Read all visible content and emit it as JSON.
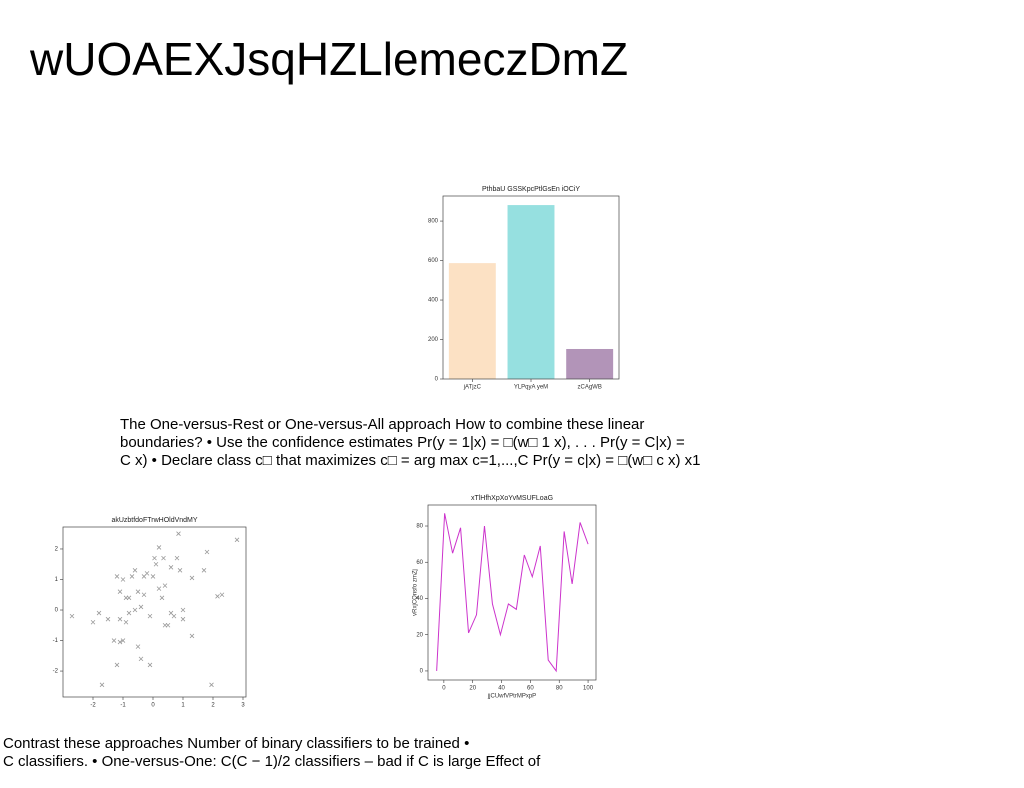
{
  "slide": {
    "title": "wUOAEXJsqHZLlemeczDmZ",
    "paragraph_1": [
      "The One-versus-Rest or One-versus-All approach How to combine these linear",
      "boundaries? • Use the confidence estimates Pr(y = 1|x) = □(w□ 1 x), . . . Pr(y = C|x) =",
      "C x) • Declare class c□ that maximizes c□ = arg max c=1,...,C Pr(y = c|x) = □(w□ c x) x1"
    ],
    "paragraph_2": [
      "Contrast these approaches Number of binary classifiers to be trained •",
      "C classifiers. • One-versus-One: C(C − 1)/2 classifiers – bad if C is large Effect of"
    ]
  },
  "chart_data": [
    {
      "type": "bar",
      "title": "PthbaU GSSKpcPtlGsEn iOCiY",
      "categories": [
        "jATjzC",
        "YLPqyA yeM",
        "zCAgWB"
      ],
      "values": [
        587,
        881,
        152
      ],
      "colors": [
        "#fce1c4",
        "#96e0e0",
        "#b294b8"
      ],
      "ylim": [
        0,
        927
      ],
      "yticks": [
        0,
        200,
        400,
        600,
        800
      ]
    },
    {
      "type": "scatter",
      "title": "akUzbtfdoFTrwHOldVndMY",
      "color": "#999999",
      "x": [
        -2.7,
        -2.0,
        -1.8,
        -1.5,
        -1.7,
        -1.2,
        -1.2,
        -1.1,
        -1.0,
        -1.1,
        -1.0,
        -0.9,
        -0.8,
        -0.8,
        -0.7,
        -0.6,
        -0.6,
        -0.5,
        -0.5,
        -0.4,
        -0.4,
        -0.3,
        -0.3,
        -0.2,
        -0.1,
        -0.1,
        0.0,
        0.05,
        0.1,
        0.2,
        0.2,
        0.3,
        0.35,
        0.4,
        0.5,
        0.6,
        0.7,
        0.8,
        0.85,
        0.9,
        1.0,
        1.0,
        1.3,
        1.3,
        1.7,
        1.8,
        1.95,
        2.15,
        2.3,
        2.8,
        -1.3,
        -0.9,
        0.6,
        -1.1,
        0.4
      ],
      "y": [
        -0.2,
        -0.4,
        -0.1,
        -0.3,
        -2.45,
        -1.8,
        1.1,
        0.6,
        1.0,
        -0.3,
        -1.0,
        0.4,
        0.4,
        -0.1,
        1.1,
        0.0,
        1.3,
        0.6,
        -1.2,
        0.1,
        -1.6,
        1.1,
        0.5,
        1.2,
        -1.8,
        -0.2,
        1.1,
        1.7,
        1.5,
        2.05,
        0.7,
        0.4,
        1.7,
        -0.5,
        -0.5,
        1.4,
        -0.2,
        1.7,
        2.5,
        1.3,
        0.0,
        -0.3,
        1.05,
        -0.85,
        1.3,
        1.9,
        -2.45,
        0.45,
        0.5,
        2.3,
        -1.0,
        -0.4,
        -0.1,
        -1.05,
        0.8
      ],
      "xlim": [
        -3,
        3.1
      ],
      "ylim": [
        -2.85,
        2.72
      ],
      "xticks": [
        -2,
        -1,
        0,
        1,
        2,
        3
      ],
      "yticks": [
        -2,
        -1,
        0,
        1,
        2
      ]
    },
    {
      "type": "line",
      "title": "xTlHfhXpXoYvMSUFLoaG",
      "xlabel": "jjCUwfVPtrMPxpP",
      "ylabel": "vRxjCQnsfo zmZj",
      "color": "#cc33cc",
      "x": [
        -5,
        0.53,
        6.05,
        11.58,
        17.11,
        22.63,
        28.16,
        33.68,
        39.21,
        44.74,
        50.26,
        55.79,
        61.32,
        66.84,
        72.37,
        77.89,
        83.42,
        88.95,
        94.47,
        100
      ],
      "values": [
        0,
        87,
        65,
        79,
        21,
        31,
        80,
        37,
        20,
        37,
        34,
        64,
        52,
        69,
        6,
        0,
        77,
        48,
        82,
        70
      ],
      "xlim": [
        -11,
        105.5
      ],
      "ylim": [
        -5,
        91.6
      ],
      "xticks": [
        0,
        20,
        40,
        60,
        80,
        100
      ],
      "yticks": [
        0,
        20,
        40,
        60,
        80
      ]
    }
  ]
}
